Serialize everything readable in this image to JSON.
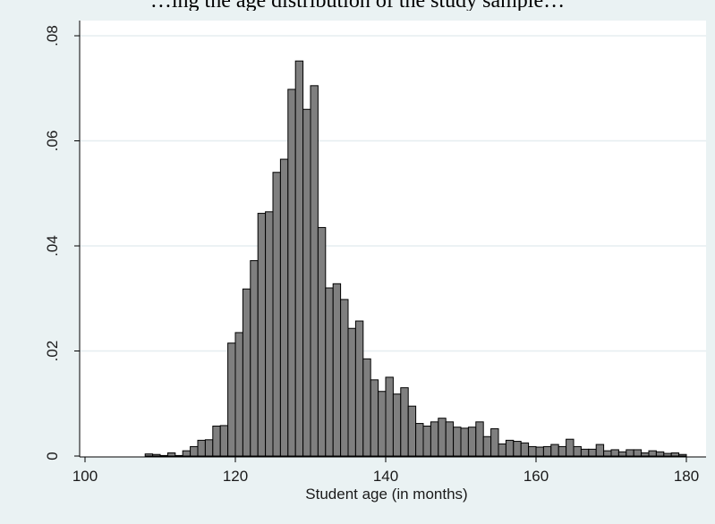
{
  "caption": "…ing the age distribution of the study sample…",
  "chart_data": {
    "type": "bar",
    "xlabel": "Student age (in months)",
    "ylabel": "",
    "xlim": [
      100,
      181
    ],
    "ylim": [
      0,
      0.08
    ],
    "xticks": [
      "100",
      "120",
      "140",
      "160",
      "180"
    ],
    "yticks": [
      "0",
      ".02",
      ".04",
      ".06",
      ".08"
    ],
    "grid": true,
    "bar_color": "#7f7f7f",
    "bar_edge": "#000000",
    "bin_width": 1,
    "bins": [
      [
        108,
        0.0004
      ],
      [
        109,
        0.0003
      ],
      [
        110,
        0.0001
      ],
      [
        111,
        0.0006
      ],
      [
        112,
        0.0001
      ],
      [
        113,
        0.001
      ],
      [
        114,
        0.0018
      ],
      [
        115,
        0.003
      ],
      [
        116,
        0.0031
      ],
      [
        117,
        0.0057
      ],
      [
        118,
        0.0058
      ],
      [
        119,
        0.0215
      ],
      [
        120,
        0.0235
      ],
      [
        121,
        0.0318
      ],
      [
        122,
        0.0372
      ],
      [
        123,
        0.0462
      ],
      [
        124,
        0.0465
      ],
      [
        125,
        0.054
      ],
      [
        126,
        0.0565
      ],
      [
        127,
        0.0698
      ],
      [
        128,
        0.0752
      ],
      [
        129,
        0.066
      ],
      [
        130,
        0.0705
      ],
      [
        131,
        0.0435
      ],
      [
        132,
        0.032
      ],
      [
        133,
        0.0328
      ],
      [
        134,
        0.0298
      ],
      [
        135,
        0.0243
      ],
      [
        136,
        0.0257
      ],
      [
        137,
        0.0185
      ],
      [
        138,
        0.0145
      ],
      [
        139,
        0.0123
      ],
      [
        140,
        0.015
      ],
      [
        141,
        0.0118
      ],
      [
        142,
        0.013
      ],
      [
        143,
        0.0095
      ],
      [
        144,
        0.0062
      ],
      [
        145,
        0.0057
      ],
      [
        146,
        0.0065
      ],
      [
        147,
        0.0072
      ],
      [
        148,
        0.0065
      ],
      [
        149,
        0.0055
      ],
      [
        150,
        0.0053
      ],
      [
        151,
        0.0055
      ],
      [
        152,
        0.0065
      ],
      [
        153,
        0.0037
      ],
      [
        154,
        0.0052
      ],
      [
        155,
        0.0023
      ],
      [
        156,
        0.003
      ],
      [
        157,
        0.0028
      ],
      [
        158,
        0.0025
      ],
      [
        159,
        0.0018
      ],
      [
        160,
        0.0017
      ],
      [
        161,
        0.0018
      ],
      [
        162,
        0.0022
      ],
      [
        163,
        0.0018
      ],
      [
        164,
        0.0032
      ],
      [
        165,
        0.0018
      ],
      [
        166,
        0.0013
      ],
      [
        167,
        0.0013
      ],
      [
        168,
        0.0022
      ],
      [
        169,
        0.001
      ],
      [
        170,
        0.0012
      ],
      [
        171,
        0.0008
      ],
      [
        172,
        0.0012
      ],
      [
        173,
        0.0012
      ],
      [
        174,
        0.0006
      ],
      [
        175,
        0.001
      ],
      [
        176,
        0.0008
      ],
      [
        177,
        0.0005
      ],
      [
        178,
        0.0006
      ],
      [
        179,
        0.0003
      ]
    ]
  }
}
